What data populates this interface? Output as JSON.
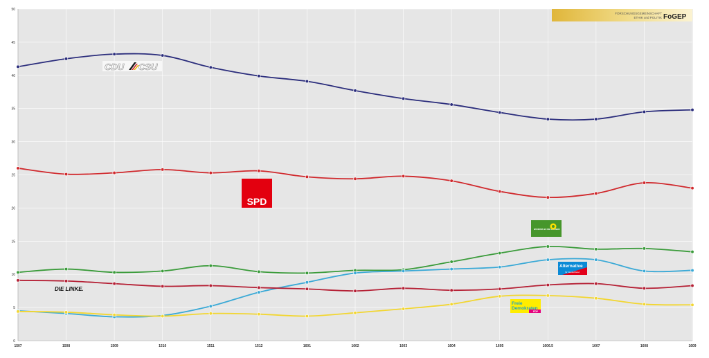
{
  "header": {
    "logo_line1": "FORSCHUNGSGEMEINSCHAFT",
    "logo_line2": "ETHIK und POLITIK",
    "logo_brand": "FoGEP"
  },
  "party_labels": {
    "cdu_text": "CDU",
    "csu_text": "CSU",
    "spd_text": "SPD",
    "gruene_text": "BÜNDNIS 90 DIE GRÜNEN",
    "afd_text": "Alternative",
    "afd_sub": "für Deutschland",
    "linke_text": "DIE LINKE.",
    "fdp_line1": "Freie",
    "fdp_line2": "Demokraten",
    "fdp_sub": "FDP"
  },
  "colors": {
    "plot_bg": "#e6e6e6",
    "grid": "#ffffff",
    "logo_gold": "#e3c244"
  },
  "chart_data": {
    "type": "line",
    "categories": [
      "1507",
      "1508",
      "1509",
      "1510",
      "1511",
      "1512",
      "1601",
      "1602",
      "1603",
      "1604",
      "1605",
      "1606.5",
      "1607",
      "1608",
      "1609"
    ],
    "yticks": [
      0,
      5,
      10,
      15,
      20,
      25,
      30,
      35,
      40,
      45,
      50
    ],
    "ylim": [
      0,
      50
    ],
    "grid": true,
    "legend": "none",
    "series": [
      {
        "key": "cdu",
        "color": "#2b2d7c",
        "values": [
          41.3,
          42.5,
          43.2,
          43.0,
          41.2,
          39.9,
          39.1,
          37.7,
          36.5,
          35.6,
          34.4,
          33.4,
          33.4,
          34.5,
          34.8
        ]
      },
      {
        "key": "spd",
        "color": "#d0292d",
        "values": [
          26.0,
          25.1,
          25.3,
          25.8,
          25.3,
          25.6,
          24.7,
          24.4,
          24.8,
          24.1,
          22.5,
          21.6,
          22.2,
          23.8,
          23.0
        ]
      },
      {
        "key": "gruene",
        "color": "#3a9b3a",
        "values": [
          10.3,
          10.8,
          10.3,
          10.5,
          11.3,
          10.4,
          10.2,
          10.6,
          10.7,
          11.9,
          13.2,
          14.2,
          13.8,
          13.9,
          13.4
        ]
      },
      {
        "key": "afd",
        "color": "#3aa9d6",
        "values": [
          4.5,
          4.1,
          3.6,
          3.8,
          5.2,
          7.3,
          8.8,
          10.2,
          10.5,
          10.8,
          11.1,
          12.2,
          12.2,
          10.5,
          10.6
        ]
      },
      {
        "key": "linke",
        "color": "#b52035",
        "values": [
          9.1,
          9.0,
          8.6,
          8.2,
          8.3,
          8.0,
          7.8,
          7.5,
          7.9,
          7.6,
          7.8,
          8.4,
          8.6,
          7.9,
          8.3
        ]
      },
      {
        "key": "fdp",
        "color": "#f2d631",
        "values": [
          4.4,
          4.3,
          3.9,
          3.7,
          4.1,
          4.0,
          3.7,
          4.2,
          4.8,
          5.5,
          6.7,
          6.8,
          6.4,
          5.5,
          5.4
        ]
      }
    ]
  }
}
